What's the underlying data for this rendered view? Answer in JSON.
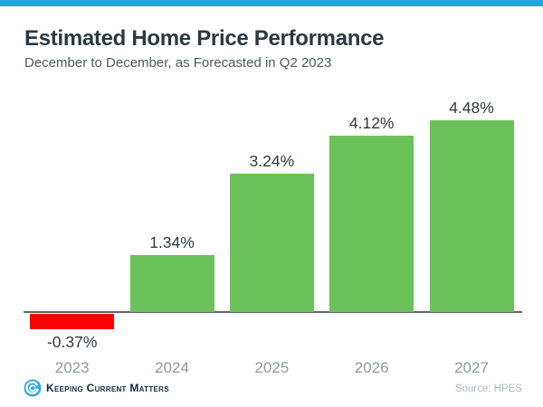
{
  "header": {
    "title": "Estimated Home Price Performance",
    "subtitle": "December to December, as Forecasted in Q2 2023"
  },
  "footer": {
    "brand": "Keeping Current Matters",
    "source": "Source: HPES"
  },
  "colors": {
    "accent_bar": "#1FA9E4",
    "title": "#2B3A42",
    "subtitle": "#4A5A63",
    "positive_bar": "#6CC25A",
    "negative_bar": "#F70505",
    "axis": "#5E6467",
    "data_label": "#2F3A40",
    "year_label": "#8D99A6",
    "logo_blue": "#2BA9E0",
    "logo_text": "#15293A",
    "source_text": "#ABB8C4"
  },
  "chart_data": {
    "type": "bar",
    "title": "Estimated Home Price Performance",
    "subtitle": "December to December, as Forecasted in Q2 2023",
    "categories": [
      "2023",
      "2024",
      "2025",
      "2026",
      "2027"
    ],
    "values": [
      -0.37,
      1.34,
      3.24,
      4.12,
      4.48
    ],
    "value_labels": [
      "-0.37%",
      "1.34%",
      "3.24%",
      "4.12%",
      "4.48%"
    ],
    "xlabel": "",
    "ylabel": "",
    "ylim": [
      -0.6,
      5.0
    ],
    "grid": false,
    "legend": false,
    "bar_colors": {
      "positive": "#6CC25A",
      "negative": "#F70505"
    },
    "source": "Source: HPES"
  }
}
